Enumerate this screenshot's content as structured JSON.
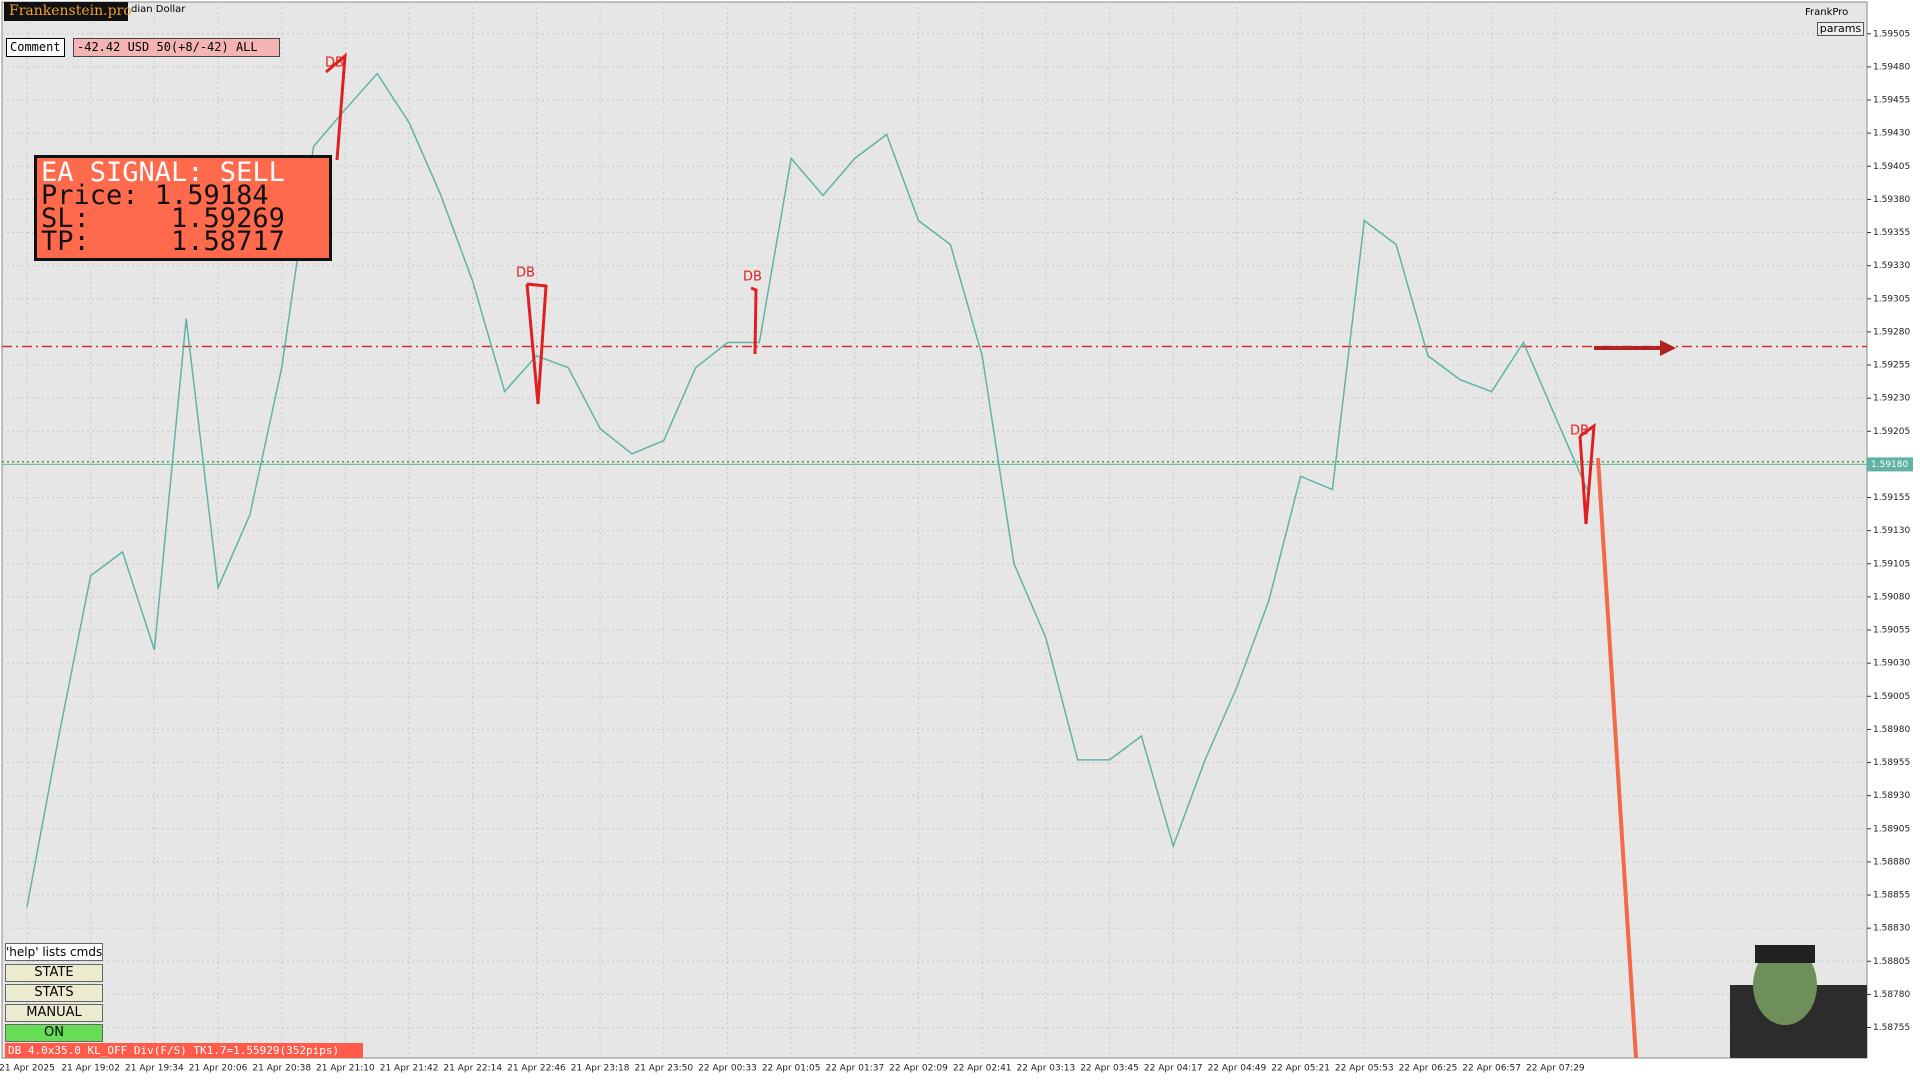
{
  "chart_data": {
    "type": "line",
    "categories": [
      "21 Apr 2025",
      null,
      "21 Apr 19:02",
      null,
      "21 Apr 19:34",
      null,
      "21 Apr 20:06",
      null,
      "21 Apr 20:38",
      null,
      "21 Apr 21:10",
      null,
      "21 Apr 21:42",
      null,
      "21 Apr 22:14",
      null,
      "21 Apr 22:46",
      null,
      "21 Apr 23:18",
      null,
      "21 Apr 23:50",
      null,
      "22 Apr 00:33",
      null,
      "22 Apr 01:05",
      null,
      "22 Apr 01:37",
      null,
      "22 Apr 02:09",
      null,
      "22 Apr 02:41",
      null,
      "22 Apr 03:13",
      null,
      "22 Apr 03:45",
      null,
      "22 Apr 04:17",
      null,
      "22 Apr 04:49",
      null,
      "22 Apr 05:21",
      null,
      "22 Apr 05:53",
      null,
      "22 Apr 06:25",
      null,
      "22 Apr 06:57",
      null,
      "22 Apr 07:29",
      null
    ],
    "series": [
      {
        "name": "Price",
        "color": "#5fb3a6",
        "values": [
          1.58846,
          1.58975,
          1.59096,
          1.59114,
          1.5904,
          1.5929,
          1.59087,
          1.59142,
          1.59253,
          1.5942,
          1.59448,
          1.59475,
          1.59438,
          1.59383,
          1.59318,
          1.59235,
          1.59262,
          1.59253,
          1.59207,
          1.59188,
          1.59198,
          1.59253,
          1.59272,
          1.59272,
          1.59411,
          1.59383,
          1.59411,
          1.59429,
          1.59364,
          1.59346,
          1.59262,
          1.59105,
          1.59049,
          1.58957,
          1.58957,
          1.58975,
          1.58892,
          1.58957,
          1.59012,
          1.59077,
          1.59171,
          1.59161,
          1.59364,
          1.59346,
          1.59262,
          1.59244,
          1.59235,
          1.59272,
          1.59216,
          1.59161
        ]
      }
    ],
    "ylim": [
      1.58732,
      1.59529
    ],
    "yticks": [
      1.59505,
      {
        "value": 1.5948,
        "label": "1.59480"
      },
      1.59455,
      {
        "value": 1.5943,
        "label": "1.59430"
      },
      1.59405,
      {
        "value": 1.5938,
        "label": "1.59380"
      },
      1.59355,
      {
        "value": 1.5933,
        "label": "1.59330"
      },
      1.59305,
      {
        "value": 1.5928,
        "label": "1.59280"
      },
      1.59255,
      {
        "value": 1.5923,
        "label": "1.59230"
      },
      1.59205,
      1.59155,
      {
        "value": 1.5913,
        "label": "1.59130"
      },
      1.59105,
      {
        "value": 1.5908,
        "label": "1.59080"
      },
      1.59055,
      {
        "value": 1.5903,
        "label": "1.59030"
      },
      1.59005,
      {
        "value": 1.5898,
        "label": "1.58980"
      },
      1.58955,
      {
        "value": 1.5893,
        "label": "1.58930"
      },
      1.58905,
      {
        "value": 1.5888,
        "label": "1.58880"
      },
      1.58855,
      {
        "value": 1.5883,
        "label": "1.58830"
      },
      1.58805,
      {
        "value": 1.5878,
        "label": "1.58780"
      },
      1.58755
    ],
    "grid": true,
    "current_price": {
      "value": 1.5918,
      "label": "1.59180",
      "color": "#5fb3a6"
    },
    "hlines": [
      {
        "value": 1.59269,
        "color": "#d32f2f"
      },
      {
        "value": 1.59182,
        "color": "#3aa63a"
      }
    ]
  },
  "ui": {
    "brand": "Frankenstein.pro",
    "symbol": "dian Dollar",
    "comment": "Comment",
    "pnl": "-42.42 USD 50(+8/-42) ALL",
    "signal": {
      "title": "EA SIGNAL: SELL",
      "price": "Price: 1.59184",
      "sl": "SL:     1.59269",
      "tp": "TP:     1.58717"
    },
    "db_labels": [
      "DB",
      "DB",
      "DB",
      "DB"
    ],
    "help": "'help' lists cmds",
    "buttons": [
      "STATE",
      "STATS",
      "MANUAL",
      "ON"
    ],
    "status": "DB 4.0x35.0 KL_OFF Div(F/S) TK1.7=1.55929(352pips)",
    "ea_name": "FrankPro",
    "params": "params"
  }
}
